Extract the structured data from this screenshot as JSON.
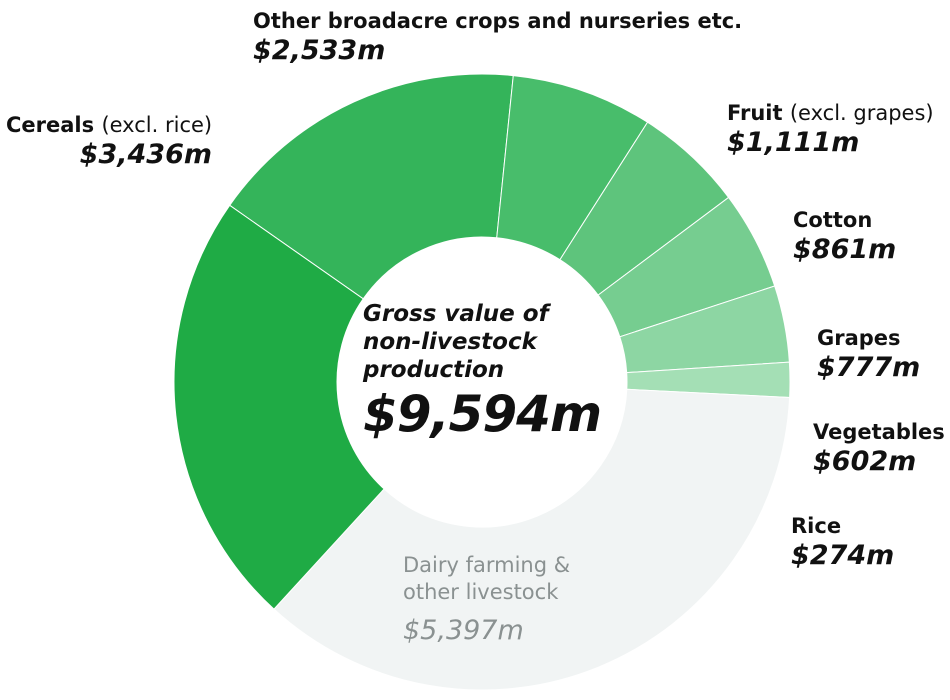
{
  "chart_data": {
    "type": "pie",
    "center_title": "Gross value of non-livestock production",
    "center_total": "$9,594m",
    "segments": [
      {
        "name": "Other broadacre crops and nurseries etc.",
        "qualifier": "",
        "value": 2533,
        "value_label": "$2,533m",
        "color": "#34b45a"
      },
      {
        "name": "Fruit",
        "qualifier": "(excl. grapes)",
        "value": 1111,
        "value_label": "$1,111m",
        "color": "#48bd6b"
      },
      {
        "name": "Cotton",
        "qualifier": "",
        "value": 861,
        "value_label": "$861m",
        "color": "#5ec47c"
      },
      {
        "name": "Grapes",
        "qualifier": "",
        "value": 777,
        "value_label": "$777m",
        "color": "#76cd90"
      },
      {
        "name": "Vegetables",
        "qualifier": "",
        "value": 602,
        "value_label": "$602m",
        "color": "#8dd6a3"
      },
      {
        "name": "Rice",
        "qualifier": "",
        "value": 274,
        "value_label": "$274m",
        "color": "#a4dfb5"
      },
      {
        "name": "Dairy farming & other livestock",
        "qualifier": "",
        "value": 5397,
        "value_label": "$5,397m",
        "color": "#f1f4f4"
      },
      {
        "name": "Cereals",
        "qualifier": "(excl. rice)",
        "value": 3436,
        "value_label": "$3,436m",
        "color": "#1fab45"
      }
    ]
  }
}
